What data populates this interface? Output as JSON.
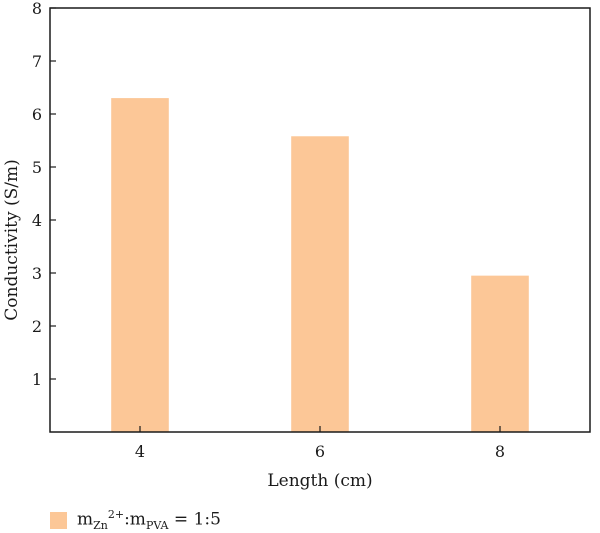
{
  "chart_data": {
    "type": "bar",
    "categories": [
      "4",
      "6",
      "8"
    ],
    "values": [
      6.3,
      5.58,
      2.95
    ],
    "title": "",
    "xlabel": "Length (cm)",
    "ylabel": "Conductivity (S/m)",
    "ylim": [
      0,
      8
    ],
    "yticks": [
      "1",
      "2",
      "3",
      "4",
      "5",
      "6",
      "7",
      "8"
    ],
    "grid": false,
    "bar_color": "#fcc797",
    "legend_placement": "bottom-left",
    "legend": {
      "m1": "m",
      "sub1": "Zn",
      "sup1": "2+",
      "colon": ":m",
      "sub2": "PVA",
      "ratio": " = 1:5"
    }
  }
}
